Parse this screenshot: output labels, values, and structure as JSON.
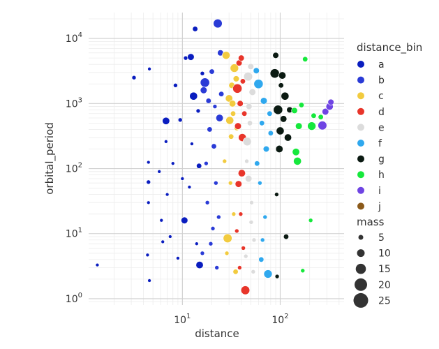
{
  "chart_data": {
    "type": "scatter",
    "xlabel": "distance",
    "ylabel": "orbital_period",
    "x_scale": "log",
    "y_scale": "log",
    "xlim": [
      1.1,
      450
    ],
    "ylim": [
      0.8,
      25000
    ],
    "grid": true,
    "x_ticks": [
      {
        "value": 10,
        "label": "10",
        "exp": "1"
      },
      {
        "value": 100,
        "label": "10",
        "exp": "2"
      }
    ],
    "y_ticks": [
      {
        "value": 1,
        "label": "10",
        "exp": "0"
      },
      {
        "value": 10,
        "label": "10",
        "exp": "1"
      },
      {
        "value": 100,
        "label": "10",
        "exp": "2"
      },
      {
        "value": 1000,
        "label": "10",
        "exp": "3"
      },
      {
        "value": 10000,
        "label": "10",
        "exp": "4"
      }
    ],
    "hue": {
      "title": "distance_bin",
      "categories": [
        "a",
        "b",
        "c",
        "d",
        "e",
        "f",
        "g",
        "h",
        "i",
        "j"
      ],
      "colors": [
        "#0a1dbf",
        "#2a3bd6",
        "#f2cb3f",
        "#e8352a",
        "#dcdcdc",
        "#2fa8ee",
        "#0b1a12",
        "#16e83c",
        "#6f44e3",
        "#8b5a1a"
      ]
    },
    "size": {
      "title": "mass",
      "values": [
        5,
        10,
        15,
        20,
        25
      ]
    },
    "points": [
      {
        "x": 1.35,
        "y": 3.3,
        "bin": "a",
        "mass": 0.5
      },
      {
        "x": 3.2,
        "y": 2500,
        "bin": "a",
        "mass": 1
      },
      {
        "x": 4.6,
        "y": 3400,
        "bin": "a",
        "mass": 0.5
      },
      {
        "x": 4.5,
        "y": 125,
        "bin": "a",
        "mass": 0.5
      },
      {
        "x": 4.5,
        "y": 62,
        "bin": "a",
        "mass": 1
      },
      {
        "x": 4.5,
        "y": 30,
        "bin": "a",
        "mass": 0.5
      },
      {
        "x": 4.4,
        "y": 4.7,
        "bin": "a",
        "mass": 0.5
      },
      {
        "x": 4.6,
        "y": 1.9,
        "bin": "a",
        "mass": 0.5
      },
      {
        "x": 5.8,
        "y": 90,
        "bin": "a",
        "mass": 0.5
      },
      {
        "x": 6.1,
        "y": 16,
        "bin": "a",
        "mass": 0.5
      },
      {
        "x": 6.3,
        "y": 7.5,
        "bin": "a",
        "mass": 0.5
      },
      {
        "x": 6.8,
        "y": 540,
        "bin": "a",
        "mass": 5
      },
      {
        "x": 6.8,
        "y": 260,
        "bin": "a",
        "mass": 0.5
      },
      {
        "x": 8.5,
        "y": 1900,
        "bin": "a",
        "mass": 1
      },
      {
        "x": 9.5,
        "y": 560,
        "bin": "a",
        "mass": 1
      },
      {
        "x": 10.5,
        "y": 16,
        "bin": "a",
        "mass": 4
      },
      {
        "x": 10.8,
        "y": 5000,
        "bin": "a",
        "mass": 1
      },
      {
        "x": 12.2,
        "y": 5200,
        "bin": "a",
        "mass": 4
      },
      {
        "x": 13.5,
        "y": 14000,
        "bin": "a",
        "mass": 2
      },
      {
        "x": 13.0,
        "y": 1300,
        "bin": "a",
        "mass": 6
      },
      {
        "x": 14.5,
        "y": 770,
        "bin": "a",
        "mass": 1
      },
      {
        "x": 15.0,
        "y": 3.3,
        "bin": "a",
        "mass": 5
      },
      {
        "x": 14.8,
        "y": 110,
        "bin": "a",
        "mass": 2
      },
      {
        "x": 12.5,
        "y": 240,
        "bin": "a",
        "mass": 0.5
      },
      {
        "x": 11.8,
        "y": 52,
        "bin": "a",
        "mass": 0.5
      },
      {
        "x": 8.0,
        "y": 120,
        "bin": "a",
        "mass": 0.5
      },
      {
        "x": 7.0,
        "y": 40,
        "bin": "a",
        "mass": 0.5
      },
      {
        "x": 7.5,
        "y": 9,
        "bin": "a",
        "mass": 0.5
      },
      {
        "x": 9.0,
        "y": 4.2,
        "bin": "a",
        "mass": 0.5
      },
      {
        "x": 16.0,
        "y": 2900,
        "bin": "a",
        "mass": 1
      },
      {
        "x": 10.0,
        "y": 70,
        "bin": "a",
        "mass": 0.5
      },
      {
        "x": 14.0,
        "y": 7,
        "bin": "a",
        "mass": 0.5
      },
      {
        "x": 23.0,
        "y": 17000,
        "bin": "b",
        "mass": 8
      },
      {
        "x": 17.0,
        "y": 2100,
        "bin": "b",
        "mass": 9
      },
      {
        "x": 24.5,
        "y": 6000,
        "bin": "b",
        "mass": 3
      },
      {
        "x": 20.0,
        "y": 3100,
        "bin": "b",
        "mass": 2
      },
      {
        "x": 18.5,
        "y": 1100,
        "bin": "b",
        "mass": 2
      },
      {
        "x": 16.5,
        "y": 1600,
        "bin": "b",
        "mass": 4
      },
      {
        "x": 19.0,
        "y": 400,
        "bin": "b",
        "mass": 2
      },
      {
        "x": 21.0,
        "y": 220,
        "bin": "b",
        "mass": 2
      },
      {
        "x": 17.5,
        "y": 120,
        "bin": "b",
        "mass": 1
      },
      {
        "x": 24.0,
        "y": 600,
        "bin": "b",
        "mass": 5
      },
      {
        "x": 22.0,
        "y": 60,
        "bin": "b",
        "mass": 1
      },
      {
        "x": 18.0,
        "y": 30,
        "bin": "b",
        "mass": 1
      },
      {
        "x": 20.5,
        "y": 12,
        "bin": "b",
        "mass": 1
      },
      {
        "x": 16.0,
        "y": 5,
        "bin": "b",
        "mass": 1
      },
      {
        "x": 22.5,
        "y": 3,
        "bin": "b",
        "mass": 1
      },
      {
        "x": 25.0,
        "y": 1400,
        "bin": "b",
        "mass": 2
      },
      {
        "x": 21.5,
        "y": 900,
        "bin": "b",
        "mass": 1
      },
      {
        "x": 19.5,
        "y": 7,
        "bin": "b",
        "mass": 1
      },
      {
        "x": 23.5,
        "y": 18,
        "bin": "b",
        "mass": 1
      },
      {
        "x": 28.0,
        "y": 5500,
        "bin": "c",
        "mass": 6
      },
      {
        "x": 30.0,
        "y": 1200,
        "bin": "c",
        "mass": 5
      },
      {
        "x": 32.0,
        "y": 1900,
        "bin": "c",
        "mass": 3
      },
      {
        "x": 34.0,
        "y": 3500,
        "bin": "c",
        "mass": 7
      },
      {
        "x": 30.5,
        "y": 550,
        "bin": "c",
        "mass": 6
      },
      {
        "x": 31.5,
        "y": 310,
        "bin": "c",
        "mass": 2
      },
      {
        "x": 29.0,
        "y": 8.5,
        "bin": "c",
        "mass": 8
      },
      {
        "x": 33.0,
        "y": 700,
        "bin": "c",
        "mass": 2
      },
      {
        "x": 27.0,
        "y": 130,
        "bin": "c",
        "mass": 1
      },
      {
        "x": 35.0,
        "y": 2.6,
        "bin": "c",
        "mass": 2
      },
      {
        "x": 31.0,
        "y": 60,
        "bin": "c",
        "mass": 1
      },
      {
        "x": 33.5,
        "y": 20,
        "bin": "c",
        "mass": 1
      },
      {
        "x": 28.5,
        "y": 5,
        "bin": "c",
        "mass": 1
      },
      {
        "x": 36.0,
        "y": 420,
        "bin": "c",
        "mass": 2
      },
      {
        "x": 32.5,
        "y": 1000,
        "bin": "c",
        "mass": 4
      },
      {
        "x": 35.5,
        "y": 2400,
        "bin": "c",
        "mass": 3
      },
      {
        "x": 38.0,
        "y": 4200,
        "bin": "d",
        "mass": 3
      },
      {
        "x": 36.5,
        "y": 1700,
        "bin": "d",
        "mass": 9
      },
      {
        "x": 40.0,
        "y": 5000,
        "bin": "d",
        "mass": 3
      },
      {
        "x": 39.0,
        "y": 1000,
        "bin": "d",
        "mass": 3
      },
      {
        "x": 37.0,
        "y": 450,
        "bin": "d",
        "mass": 4
      },
      {
        "x": 41.0,
        "y": 300,
        "bin": "d",
        "mass": 6
      },
      {
        "x": 40.5,
        "y": 85,
        "bin": "d",
        "mass": 5
      },
      {
        "x": 37.5,
        "y": 58,
        "bin": "d",
        "mass": 4
      },
      {
        "x": 44.0,
        "y": 1.35,
        "bin": "d",
        "mass": 8
      },
      {
        "x": 39.5,
        "y": 20,
        "bin": "d",
        "mass": 1
      },
      {
        "x": 42.0,
        "y": 6,
        "bin": "d",
        "mass": 1
      },
      {
        "x": 38.5,
        "y": 3,
        "bin": "d",
        "mass": 1
      },
      {
        "x": 43.0,
        "y": 700,
        "bin": "d",
        "mass": 2
      },
      {
        "x": 36.0,
        "y": 11,
        "bin": "d",
        "mass": 1
      },
      {
        "x": 41.5,
        "y": 2200,
        "bin": "d",
        "mass": 2
      },
      {
        "x": 50.0,
        "y": 3700,
        "bin": "e",
        "mass": 3
      },
      {
        "x": 47.0,
        "y": 2600,
        "bin": "e",
        "mass": 8
      },
      {
        "x": 52.0,
        "y": 1500,
        "bin": "e",
        "mass": 4
      },
      {
        "x": 48.0,
        "y": 900,
        "bin": "e",
        "mass": 3
      },
      {
        "x": 46.0,
        "y": 260,
        "bin": "e",
        "mass": 7
      },
      {
        "x": 49.0,
        "y": 500,
        "bin": "e",
        "mass": 2
      },
      {
        "x": 47.5,
        "y": 70,
        "bin": "e",
        "mass": 4
      },
      {
        "x": 51.0,
        "y": 30,
        "bin": "e",
        "mass": 1
      },
      {
        "x": 53.0,
        "y": 2.6,
        "bin": "e",
        "mass": 1
      },
      {
        "x": 45.5,
        "y": 130,
        "bin": "e",
        "mass": 1
      },
      {
        "x": 54.0,
        "y": 8,
        "bin": "e",
        "mass": 1
      },
      {
        "x": 50.5,
        "y": 15,
        "bin": "e",
        "mass": 1
      },
      {
        "x": 44.5,
        "y": 4.5,
        "bin": "e",
        "mass": 1
      },
      {
        "x": 60.0,
        "y": 2000,
        "bin": "f",
        "mass": 9
      },
      {
        "x": 57.0,
        "y": 3200,
        "bin": "f",
        "mass": 3
      },
      {
        "x": 68.0,
        "y": 1100,
        "bin": "f",
        "mass": 4
      },
      {
        "x": 72.0,
        "y": 200,
        "bin": "f",
        "mass": 3
      },
      {
        "x": 65.0,
        "y": 500,
        "bin": "f",
        "mass": 2
      },
      {
        "x": 75.0,
        "y": 2.4,
        "bin": "f",
        "mass": 7
      },
      {
        "x": 62.0,
        "y": 60,
        "bin": "f",
        "mass": 1
      },
      {
        "x": 70.0,
        "y": 18,
        "bin": "f",
        "mass": 1
      },
      {
        "x": 58.0,
        "y": 120,
        "bin": "f",
        "mass": 2
      },
      {
        "x": 78.0,
        "y": 700,
        "bin": "f",
        "mass": 2
      },
      {
        "x": 64.0,
        "y": 4,
        "bin": "f",
        "mass": 2
      },
      {
        "x": 80.0,
        "y": 350,
        "bin": "f",
        "mass": 2
      },
      {
        "x": 66.0,
        "y": 8,
        "bin": "f",
        "mass": 1
      },
      {
        "x": 88.0,
        "y": 2900,
        "bin": "g",
        "mass": 9
      },
      {
        "x": 90.0,
        "y": 5500,
        "bin": "g",
        "mass": 3
      },
      {
        "x": 105.0,
        "y": 2700,
        "bin": "g",
        "mass": 5
      },
      {
        "x": 95.0,
        "y": 800,
        "bin": "g",
        "mass": 9
      },
      {
        "x": 112.0,
        "y": 1300,
        "bin": "g",
        "mass": 6
      },
      {
        "x": 100.0,
        "y": 380,
        "bin": "g",
        "mass": 6
      },
      {
        "x": 120.0,
        "y": 300,
        "bin": "g",
        "mass": 5
      },
      {
        "x": 98.0,
        "y": 200,
        "bin": "g",
        "mass": 5
      },
      {
        "x": 108.0,
        "y": 580,
        "bin": "g",
        "mass": 4
      },
      {
        "x": 92.0,
        "y": 40,
        "bin": "g",
        "mass": 1
      },
      {
        "x": 115.0,
        "y": 9,
        "bin": "g",
        "mass": 2
      },
      {
        "x": 93.0,
        "y": 2.2,
        "bin": "g",
        "mass": 1
      },
      {
        "x": 125.0,
        "y": 800,
        "bin": "g",
        "mass": 3
      },
      {
        "x": 102.0,
        "y": 1900,
        "bin": "g",
        "mass": 2
      },
      {
        "x": 180.0,
        "y": 4800,
        "bin": "h",
        "mass": 2
      },
      {
        "x": 140.0,
        "y": 780,
        "bin": "h",
        "mass": 3
      },
      {
        "x": 155.0,
        "y": 450,
        "bin": "h",
        "mass": 4
      },
      {
        "x": 210.0,
        "y": 450,
        "bin": "h",
        "mass": 7
      },
      {
        "x": 150.0,
        "y": 130,
        "bin": "h",
        "mass": 6
      },
      {
        "x": 145.0,
        "y": 180,
        "bin": "h",
        "mass": 5
      },
      {
        "x": 205.0,
        "y": 16,
        "bin": "h",
        "mass": 1
      },
      {
        "x": 170.0,
        "y": 2.7,
        "bin": "h",
        "mass": 1
      },
      {
        "x": 220.0,
        "y": 650,
        "bin": "h",
        "mass": 2
      },
      {
        "x": 260.0,
        "y": 620,
        "bin": "h",
        "mass": 2
      },
      {
        "x": 165.0,
        "y": 950,
        "bin": "h",
        "mass": 2
      },
      {
        "x": 270.0,
        "y": 460,
        "bin": "i",
        "mass": 8
      },
      {
        "x": 290.0,
        "y": 750,
        "bin": "i",
        "mass": 4
      },
      {
        "x": 320.0,
        "y": 900,
        "bin": "i",
        "mass": 5
      },
      {
        "x": 330.0,
        "y": 1050,
        "bin": "i",
        "mass": 3
      }
    ]
  }
}
